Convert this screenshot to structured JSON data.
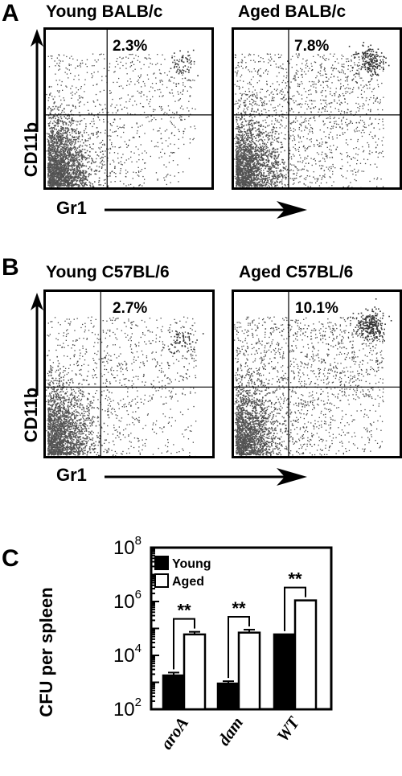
{
  "panel_a": {
    "letter": "A",
    "plots": [
      {
        "title": "Young BALB/c",
        "percent": "2.3%"
      },
      {
        "title": "Aged BALB/c",
        "percent": "7.8%"
      }
    ],
    "ylabel": "CD11b",
    "xlabel": "Gr1"
  },
  "panel_b": {
    "letter": "B",
    "plots": [
      {
        "title": "Young C57BL/6",
        "percent": "2.7%"
      },
      {
        "title": "Aged C57BL/6",
        "percent": "10.1%"
      }
    ],
    "ylabel": "CD11b",
    "xlabel": "Gr1"
  },
  "panel_c": {
    "letter": "C",
    "ylabel": "CFU per spleen",
    "significance": "**"
  },
  "chart_data": [
    {
      "type": "bar",
      "title": "",
      "ylabel": "CFU per spleen",
      "xlabel": "",
      "yscale": "log",
      "ylim": [
        100,
        100000000
      ],
      "ytick_labels": [
        "10^2",
        "10^4",
        "10^6",
        "10^8"
      ],
      "categories": [
        "aroA",
        "dam",
        "WT"
      ],
      "series": [
        {
          "name": "Young",
          "color": "#000000",
          "values": [
            1800,
            900,
            60000
          ],
          "errors": [
            500,
            200,
            0
          ]
        },
        {
          "name": "Aged",
          "color": "#ffffff",
          "values": [
            60000,
            70000,
            1100000
          ],
          "errors": [
            15000,
            20000,
            0
          ]
        }
      ],
      "annotations": [
        "**",
        "**",
        "**"
      ],
      "legend": {
        "entries": [
          "Young",
          "Aged"
        ],
        "position": "top-left"
      }
    }
  ]
}
